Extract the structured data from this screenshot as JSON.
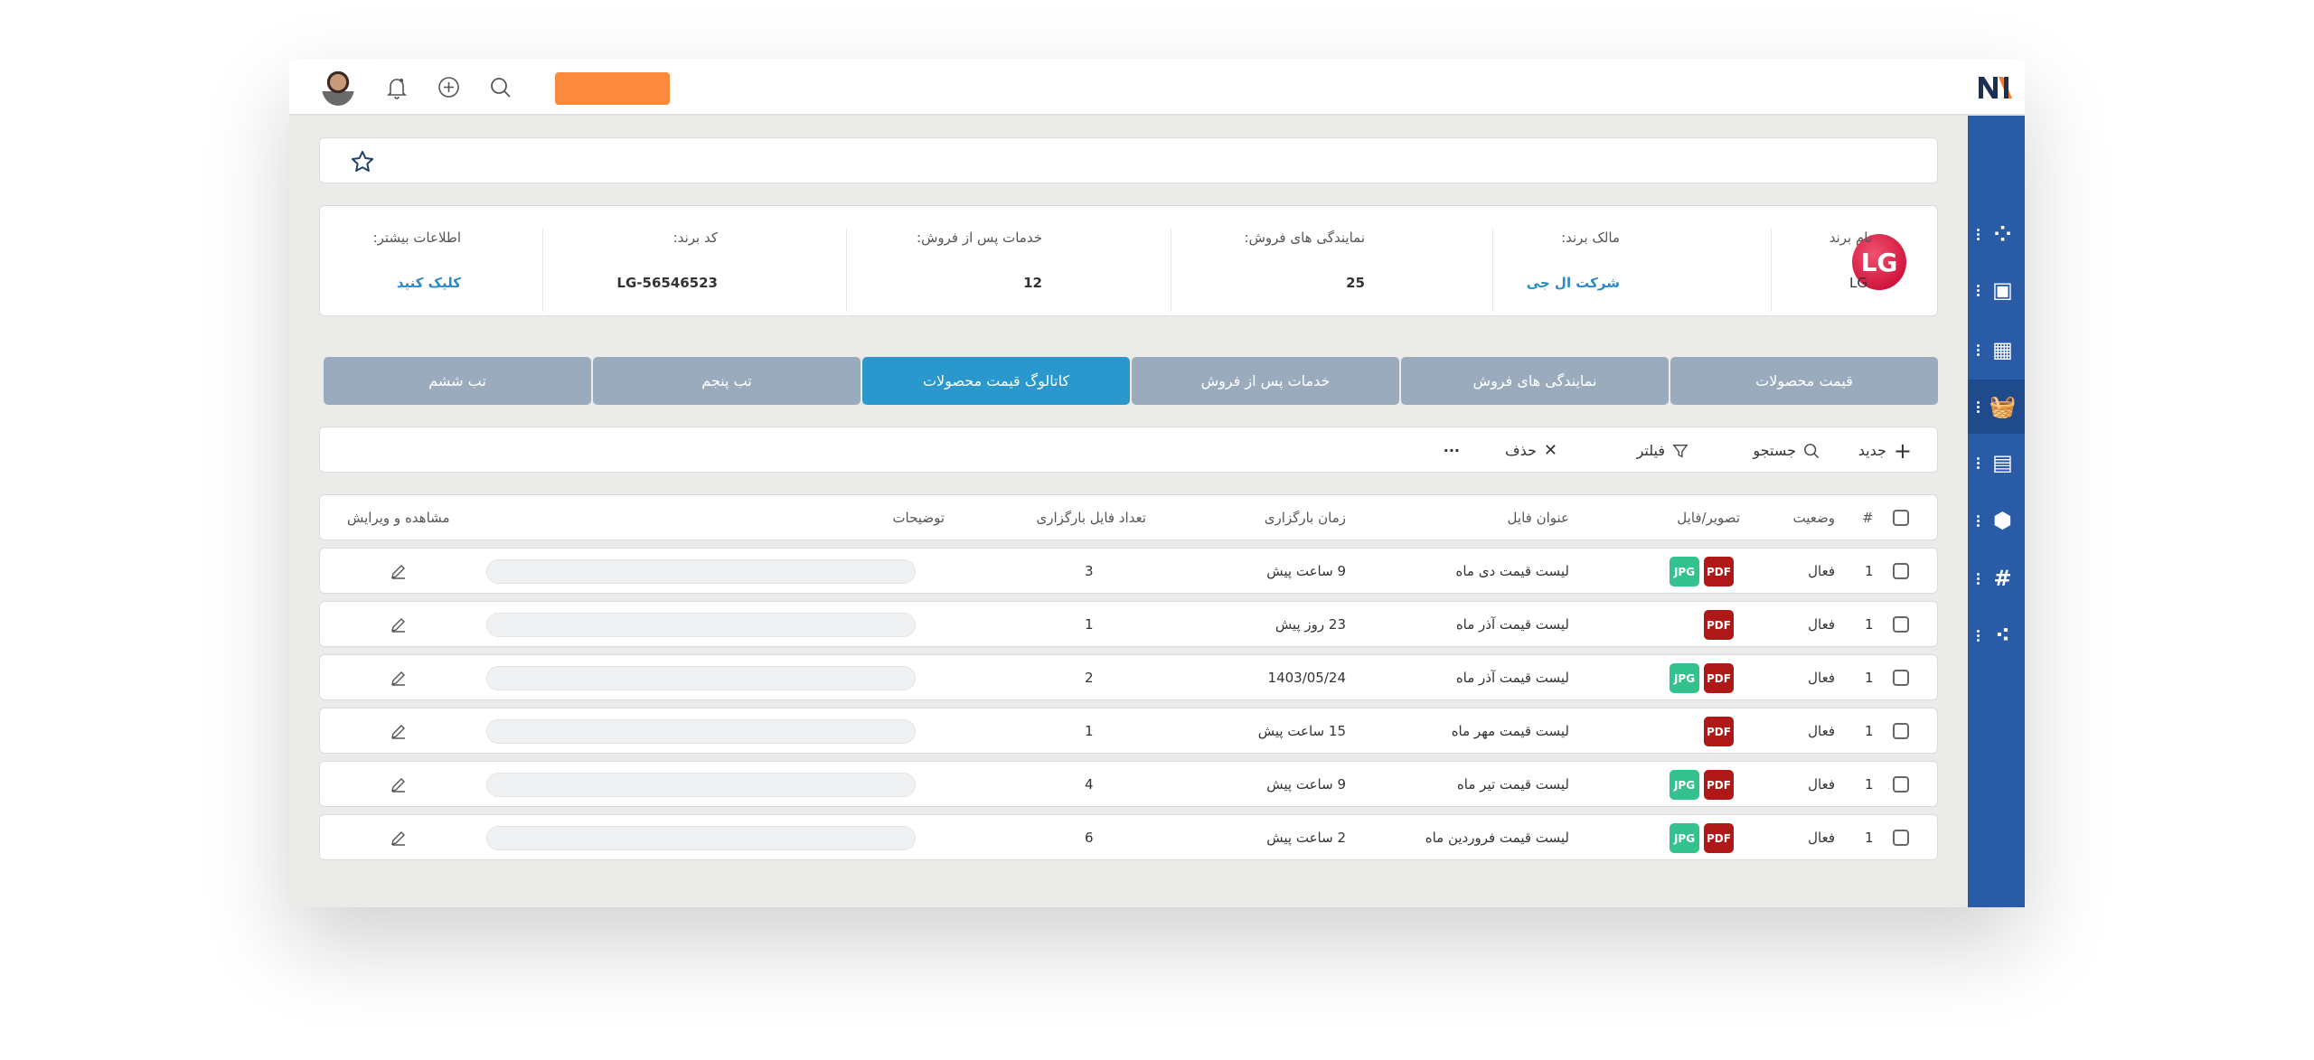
{
  "header": {
    "icons": [
      "avatar",
      "bell-icon",
      "plus-circle-icon",
      "search-icon"
    ],
    "accent_button_color": "#fb8a3c",
    "logo": "NN"
  },
  "sidebar": {
    "items": [
      "team-icon",
      "calendar-clock-icon",
      "dashboard-add-icon",
      "basket-icon",
      "calendar-note-icon",
      "package-clock-icon",
      "hashtag-lock-icon",
      "bubbles-icon"
    ],
    "active_index": 3,
    "color": "#2a5ba6"
  },
  "brand": {
    "logo_text": "LG",
    "fields": [
      {
        "label": "نام برند",
        "value": "LG"
      },
      {
        "label": "مالک برند:",
        "value": "شرکت ال جی"
      },
      {
        "label": "نمایندگی های فروش:",
        "value": "25"
      },
      {
        "label": "خدمات پس از فروش:",
        "value": "12"
      },
      {
        "label": "کد برند:",
        "value": "LG-56546523"
      },
      {
        "label": "اطلاعات بیشتر:",
        "value": "کلیک کنید"
      }
    ]
  },
  "tabs": [
    {
      "label": "قیمت محصولات",
      "active": false
    },
    {
      "label": "نمایندگی های فروش",
      "active": false
    },
    {
      "label": "خدمات پس از فروش",
      "active": false
    },
    {
      "label": "کاتالوگ قیمت محصولات",
      "active": true
    },
    {
      "label": "تب پنجم",
      "active": false
    },
    {
      "label": "تب ششم",
      "active": false
    }
  ],
  "toolbar": {
    "new": "جدید",
    "search": "جستجو",
    "filter": "فیلتر",
    "delete": "حذف",
    "more": "···"
  },
  "table": {
    "headers": {
      "num": "#",
      "status": "وضعیت",
      "file": "تصویر/فایل",
      "title": "عنوان فایل",
      "time": "زمان بارگزاری",
      "count": "تعداد فایل بارگزاری",
      "desc": "توضیحات",
      "edit": "مشاهده و ویرایش"
    },
    "rows": [
      {
        "num": "1",
        "status": "فعال",
        "files": [
          "JPG",
          "PDF"
        ],
        "title": "لیست قیمت دی ماه",
        "time": "9 ساعت پیش",
        "count": "3"
      },
      {
        "num": "1",
        "status": "فعال",
        "files": [
          "PDF"
        ],
        "title": "لیست قیمت آذر ماه",
        "time": "23 روز پیش",
        "count": "1"
      },
      {
        "num": "1",
        "status": "فعال",
        "files": [
          "JPG",
          "PDF"
        ],
        "title": "لیست قیمت آذر ماه",
        "time": "1403/05/24",
        "count": "2"
      },
      {
        "num": "1",
        "status": "فعال",
        "files": [
          "PDF"
        ],
        "title": "لیست قیمت مهر ماه",
        "time": "15 ساعت پیش",
        "count": "1"
      },
      {
        "num": "1",
        "status": "فعال",
        "files": [
          "JPG",
          "PDF"
        ],
        "title": "لیست قیمت تیر ماه",
        "time": "9 ساعت پیش",
        "count": "4"
      },
      {
        "num": "1",
        "status": "فعال",
        "files": [
          "JPG",
          "PDF"
        ],
        "title": "لیست قیمت فروردین ماه",
        "time": "2 ساعت پیش",
        "count": "6"
      }
    ]
  }
}
